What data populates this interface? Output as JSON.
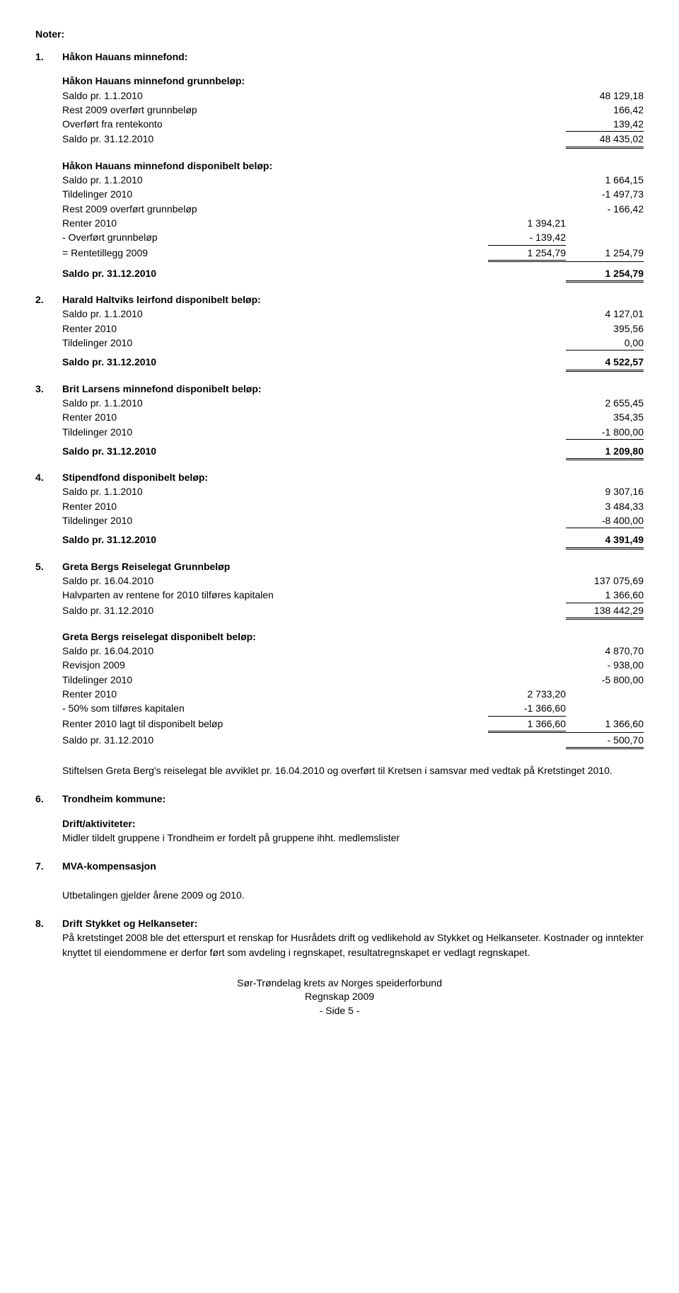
{
  "header": "Noter:",
  "section1": {
    "num": "1.",
    "title": "Håkon Hauans minnefond:",
    "block1_title": "Håkon Hauans minnefond grunnbeløp:",
    "r1_label": "Saldo pr. 1.1.2010",
    "r1_val": "48 129,18",
    "r2_label": "Rest 2009 overført grunnbeløp",
    "r2_val": "166,42",
    "r3_label": "Overført fra rentekonto",
    "r3_val": "139,42",
    "r4_label": "Saldo pr. 31.12.2010",
    "r4_val": "48 435,02",
    "block2_title": "Håkon Hauans minnefond disponibelt beløp:",
    "b2r1_label": "Saldo pr. 1.1.2010",
    "b2r1_val": "1 664,15",
    "b2r2_label": "Tildelinger 2010",
    "b2r2_val": "-1 497,73",
    "b2r3_label": "Rest 2009 overført grunnbeløp",
    "b2r3_val": "- 166,42",
    "b2r4_label": "Renter 2010",
    "b2r4_mid": "1 394,21",
    "b2r5_label": "- Overført grunnbeløp",
    "b2r5_mid": "- 139,42",
    "b2r6_label": "= Rentetillegg 2009",
    "b2r6_mid": "1 254,79",
    "b2r6_val": "1 254,79",
    "b2r7_label": "Saldo pr. 31.12.2010",
    "b2r7_val": "1 254,79"
  },
  "section2": {
    "num": "2.",
    "title": "Harald Haltviks leirfond disponibelt beløp:",
    "r1_label": "Saldo pr. 1.1.2010",
    "r1_val": "4 127,01",
    "r2_label": "Renter 2010",
    "r2_val": "395,56",
    "r3_label": "Tildelinger 2010",
    "r3_val": "0,00",
    "r4_label": "Saldo pr. 31.12.2010",
    "r4_val": "4 522,57"
  },
  "section3": {
    "num": "3.",
    "title": "Brit Larsens minnefond disponibelt beløp:",
    "r1_label": "Saldo pr. 1.1.2010",
    "r1_val": "2 655,45",
    "r2_label": "Renter 2010",
    "r2_val": "354,35",
    "r3_label": "Tildelinger 2010",
    "r3_val": "-1 800,00",
    "r4_label": "Saldo pr. 31.12.2010",
    "r4_val": "1 209,80"
  },
  "section4": {
    "num": "4.",
    "title": "Stipendfond disponibelt beløp:",
    "r1_label": "Saldo pr. 1.1.2010",
    "r1_val": "9 307,16",
    "r2_label": "Renter 2010",
    "r2_val": "3 484,33",
    "r3_label": "Tildelinger 2010",
    "r3_val": "-8 400,00",
    "r4_label": "Saldo pr. 31.12.2010",
    "r4_val": "4 391,49"
  },
  "section5": {
    "num": "5.",
    "title": "Greta Bergs Reiselegat Grunnbeløp",
    "r1_label": "Saldo pr. 16.04.2010",
    "r1_val": "137 075,69",
    "r2_label": "Halvparten av rentene for 2010 tilføres kapitalen",
    "r2_val": "1 366,60",
    "r3_label": "Saldo pr. 31.12.2010",
    "r3_val": "138 442,29",
    "block2_title": "Greta Bergs reiselegat disponibelt beløp:",
    "b2r1_label": "Saldo pr. 16.04.2010",
    "b2r1_val": "4 870,70",
    "b2r2_label": "Revisjon 2009",
    "b2r2_val": "- 938,00",
    "b2r3_label": "Tildelinger 2010",
    "b2r3_val": "-5 800,00",
    "b2r4_label": "Renter 2010",
    "b2r4_mid": "2 733,20",
    "b2r5_label": "- 50% som tilføres kapitalen",
    "b2r5_mid": "-1 366,60",
    "b2r6_label": "Renter 2010 lagt til disponibelt beløp",
    "b2r6_mid": "1 366,60",
    "b2r6_val": "1 366,60",
    "b2r7_label": "Saldo pr. 31.12.2010",
    "b2r7_val": "- 500,70",
    "para1": "Stiftelsen Greta Berg's reiselegat ble avviklet pr. 16.04.2010 og overført til Kretsen i samsvar med vedtak på Kretstinget 2010."
  },
  "section6": {
    "num": "6.",
    "title": "Trondheim kommune:",
    "sub_title": "Drift/aktiviteter:",
    "para": "Midler tildelt gruppene i Trondheim er fordelt på gruppene ihht. medlemslister"
  },
  "section7": {
    "num": "7.",
    "title": "MVA-kompensasjon",
    "para": "Utbetalingen gjelder årene 2009 og 2010."
  },
  "section8": {
    "num": "8.",
    "title": "Drift Stykket og Helkanseter:",
    "para": "På kretstinget 2008 ble det etterspurt et renskap for Husrådets drift og vedlikehold av Stykket og Helkanseter. Kostnader og inntekter knyttet til eiendommene er derfor ført som avdeling i regnskapet, resultatregnskapet er vedlagt regnskapet."
  },
  "footer": {
    "l1": "Sør-Trøndelag krets av Norges speiderforbund",
    "l2": "Regnskap 2009",
    "l3": "- Side 5 -"
  }
}
